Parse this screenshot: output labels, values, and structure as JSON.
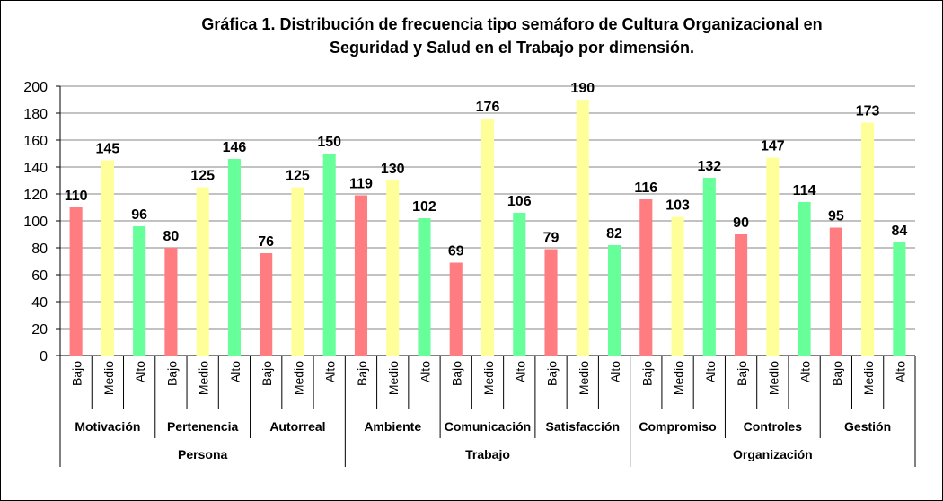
{
  "chart_data": {
    "type": "bar",
    "title": "Gráfica 1. Distribución de frecuencia tipo semáforo de Cultura Organizacional en Seguridad y Salud en el Trabajo por dimensión.",
    "title_lines": [
      "Gráfica 1. Distribución de frecuencia tipo semáforo de Cultura Organizacional en",
      "Seguridad y Salud en el Trabajo por dimensión."
    ],
    "ylim": [
      0,
      200
    ],
    "yticks": [
      "0",
      "20",
      "40",
      "60",
      "80",
      "100",
      "120",
      "140",
      "160",
      "180",
      "200"
    ],
    "grid": true,
    "levels": [
      "Bajo",
      "Medio",
      "Alto"
    ],
    "level_colors": {
      "Bajo": "#ff7c80",
      "Medio": "#ffff99",
      "Alto": "#66ff99"
    },
    "groups": [
      {
        "name": "Persona",
        "dimensions": [
          {
            "name": "Motivación",
            "values": [
              110,
              145,
              96
            ]
          },
          {
            "name": "Pertenencia",
            "values": [
              80,
              125,
              146
            ]
          },
          {
            "name": "Autorreal",
            "values": [
              76,
              125,
              150
            ]
          }
        ]
      },
      {
        "name": "Trabajo",
        "dimensions": [
          {
            "name": "Ambiente",
            "values": [
              119,
              130,
              102
            ]
          },
          {
            "name": "Comunicación",
            "values": [
              69,
              176,
              106
            ]
          },
          {
            "name": "Satisfacción",
            "values": [
              79,
              190,
              82
            ]
          }
        ]
      },
      {
        "name": "Organización",
        "dimensions": [
          {
            "name": "Compromiso",
            "values": [
              116,
              103,
              132
            ]
          },
          {
            "name": "Controles",
            "values": [
              90,
              147,
              114
            ]
          },
          {
            "name": "Gestión",
            "values": [
              95,
              173,
              84
            ]
          }
        ]
      }
    ]
  }
}
